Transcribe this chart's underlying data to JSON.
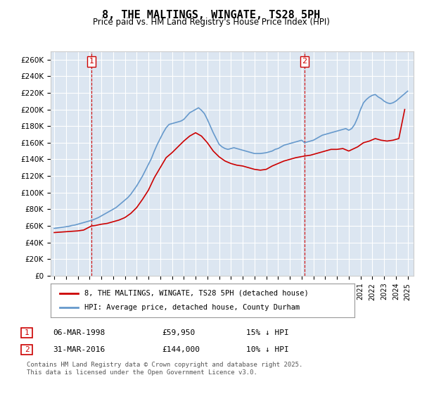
{
  "title": "8, THE MALTINGS, WINGATE, TS28 5PH",
  "subtitle": "Price paid vs. HM Land Registry's House Price Index (HPI)",
  "ylabel_ticks": [
    "£0",
    "£20K",
    "£40K",
    "£60K",
    "£80K",
    "£100K",
    "£120K",
    "£140K",
    "£160K",
    "£180K",
    "£200K",
    "£220K",
    "£240K",
    "£260K"
  ],
  "ylim": [
    0,
    270000
  ],
  "xlim_start": 1995.0,
  "xlim_end": 2025.5,
  "marker1_x": 1998.17,
  "marker1_label": "1",
  "marker2_x": 2016.25,
  "marker2_label": "2",
  "sale1_date": "06-MAR-1998",
  "sale1_price": "£59,950",
  "sale1_hpi": "15% ↓ HPI",
  "sale2_date": "31-MAR-2016",
  "sale2_price": "£144,000",
  "sale2_hpi": "10% ↓ HPI",
  "legend1": "8, THE MALTINGS, WINGATE, TS28 5PH (detached house)",
  "legend2": "HPI: Average price, detached house, County Durham",
  "footnote": "Contains HM Land Registry data © Crown copyright and database right 2025.\nThis data is licensed under the Open Government Licence v3.0.",
  "sale_color": "#cc0000",
  "hpi_color": "#6699cc",
  "background_color": "#dce6f1",
  "grid_color": "#ffffff",
  "marker_box_color": "#cc0000",
  "hpi_data_x": [
    1995.0,
    1995.25,
    1995.5,
    1995.75,
    1996.0,
    1996.25,
    1996.5,
    1996.75,
    1997.0,
    1997.25,
    1997.5,
    1997.75,
    1998.0,
    1998.25,
    1998.5,
    1998.75,
    1999.0,
    1999.25,
    1999.5,
    1999.75,
    2000.0,
    2000.25,
    2000.5,
    2000.75,
    2001.0,
    2001.25,
    2001.5,
    2001.75,
    2002.0,
    2002.25,
    2002.5,
    2002.75,
    2003.0,
    2003.25,
    2003.5,
    2003.75,
    2004.0,
    2004.25,
    2004.5,
    2004.75,
    2005.0,
    2005.25,
    2005.5,
    2005.75,
    2006.0,
    2006.25,
    2006.5,
    2006.75,
    2007.0,
    2007.25,
    2007.5,
    2007.75,
    2008.0,
    2008.25,
    2008.5,
    2008.75,
    2009.0,
    2009.25,
    2009.5,
    2009.75,
    2010.0,
    2010.25,
    2010.5,
    2010.75,
    2011.0,
    2011.25,
    2011.5,
    2011.75,
    2012.0,
    2012.25,
    2012.5,
    2012.75,
    2013.0,
    2013.25,
    2013.5,
    2013.75,
    2014.0,
    2014.25,
    2014.5,
    2014.75,
    2015.0,
    2015.25,
    2015.5,
    2015.75,
    2016.0,
    2016.25,
    2016.5,
    2016.75,
    2017.0,
    2017.25,
    2017.5,
    2017.75,
    2018.0,
    2018.25,
    2018.5,
    2018.75,
    2019.0,
    2019.25,
    2019.5,
    2019.75,
    2020.0,
    2020.25,
    2020.5,
    2020.75,
    2021.0,
    2021.25,
    2021.5,
    2021.75,
    2022.0,
    2022.25,
    2022.5,
    2022.75,
    2023.0,
    2023.25,
    2023.5,
    2023.75,
    2024.0,
    2024.25,
    2024.5,
    2024.75,
    2025.0
  ],
  "hpi_data_y": [
    57000,
    57500,
    58000,
    58500,
    59000,
    59500,
    60500,
    61000,
    62000,
    63000,
    64000,
    65000,
    66000,
    67000,
    68500,
    70000,
    72000,
    74000,
    76000,
    78000,
    80000,
    82000,
    85000,
    88000,
    91000,
    94000,
    98000,
    103000,
    108000,
    114000,
    120000,
    127000,
    134000,
    141000,
    150000,
    158000,
    165000,
    172000,
    178000,
    182000,
    183000,
    184000,
    185000,
    186000,
    188000,
    192000,
    196000,
    198000,
    200000,
    202000,
    199000,
    195000,
    188000,
    180000,
    172000,
    165000,
    158000,
    155000,
    153000,
    152000,
    153000,
    154000,
    153000,
    152000,
    151000,
    150000,
    149000,
    148000,
    147000,
    147000,
    147000,
    147500,
    148000,
    149000,
    150000,
    152000,
    153000,
    155000,
    157000,
    158000,
    159000,
    160000,
    161000,
    162000,
    163000,
    160000,
    161000,
    162000,
    163000,
    165000,
    167000,
    169000,
    170000,
    171000,
    172000,
    173000,
    174000,
    175000,
    176000,
    177000,
    175000,
    177000,
    182000,
    190000,
    200000,
    208000,
    212000,
    215000,
    217000,
    218000,
    215000,
    213000,
    210000,
    208000,
    207000,
    208000,
    210000,
    213000,
    216000,
    219000,
    222000
  ],
  "sale_data_x": [
    1995.0,
    1995.5,
    1996.0,
    1996.5,
    1997.0,
    1997.5,
    1998.17,
    1998.5,
    1999.0,
    1999.5,
    2000.0,
    2000.5,
    2001.0,
    2001.5,
    2002.0,
    2002.5,
    2003.0,
    2003.5,
    2004.0,
    2004.5,
    2005.0,
    2005.5,
    2006.0,
    2006.5,
    2007.0,
    2007.5,
    2008.0,
    2008.5,
    2009.0,
    2009.5,
    2010.0,
    2010.5,
    2011.0,
    2011.5,
    2012.0,
    2012.5,
    2013.0,
    2013.5,
    2014.0,
    2014.5,
    2015.0,
    2015.5,
    2016.25,
    2016.75,
    2017.5,
    2018.0,
    2018.5,
    2019.0,
    2019.5,
    2020.0,
    2020.75,
    2021.25,
    2021.75,
    2022.25,
    2022.75,
    2023.25,
    2023.75,
    2024.25,
    2024.75
  ],
  "sale_data_y": [
    52000,
    52500,
    53000,
    53500,
    54000,
    55000,
    59950,
    60500,
    62000,
    63000,
    65000,
    67000,
    70000,
    75000,
    82000,
    92000,
    103000,
    118000,
    130000,
    142000,
    148000,
    155000,
    162000,
    168000,
    172000,
    168000,
    160000,
    150000,
    143000,
    138000,
    135000,
    133000,
    132000,
    130000,
    128000,
    127000,
    128000,
    132000,
    135000,
    138000,
    140000,
    142000,
    144000,
    145000,
    148000,
    150000,
    152000,
    152000,
    153000,
    150000,
    155000,
    160000,
    162000,
    165000,
    163000,
    162000,
    163000,
    165000,
    200000
  ]
}
